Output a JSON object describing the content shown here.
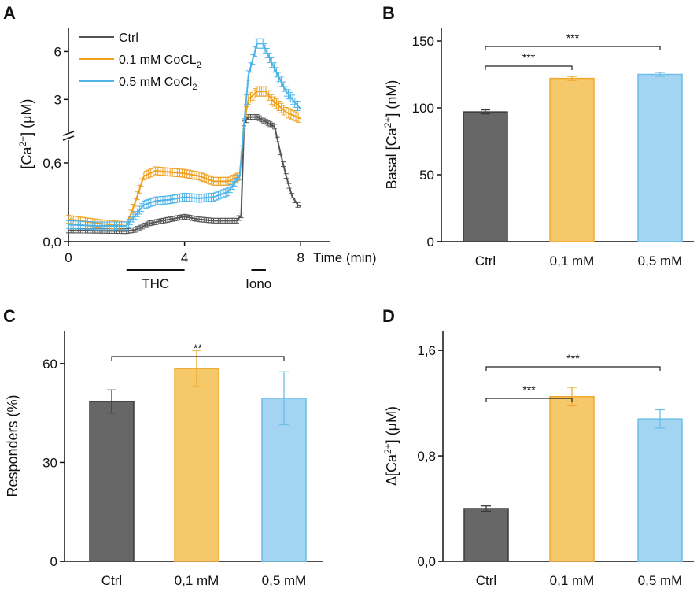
{
  "colors": {
    "ctrl_fill": "#676767",
    "ctrl_stroke": "#3a3a3a",
    "low_fill": "#f5c869",
    "low_stroke": "#f0a830",
    "high_fill": "#a3d5f3",
    "high_stroke": "#6cbde9",
    "ctrl_line": "#555555",
    "low_line": "#f0a020",
    "high_line": "#4fb3e8"
  },
  "chart_data": [
    {
      "panel": "A",
      "type": "line",
      "xlabel": "Time (min)",
      "ylabel": {
        "prefix": "[Ca",
        "sup": "2+",
        "suffix": "] (μM)"
      },
      "xticks": [
        "0",
        "4",
        "8"
      ],
      "xtick_values": [
        0,
        4,
        8
      ],
      "yticks": [
        "0,0",
        "0,6",
        "3",
        "6"
      ],
      "ytick_values": [
        0,
        0.6,
        3,
        6
      ],
      "y_axis_break": 0.7,
      "xlim": [
        0,
        9
      ],
      "annotations": [
        {
          "label": "THC",
          "start": 2,
          "end": 4
        },
        {
          "label": "Iono",
          "start": 6.3,
          "end": 6.8
        }
      ],
      "series": [
        {
          "name": "Ctrl",
          "sub": "",
          "color_key": "ctrl_line",
          "x": [
            0,
            1,
            2,
            2.3,
            2.8,
            3.5,
            4,
            4.5,
            5,
            5.8,
            5.95,
            6.05,
            6.2,
            6.5,
            6.8,
            7.1,
            7.3,
            7.5,
            7.7,
            7.9,
            8.0
          ],
          "y": [
            0.085,
            0.083,
            0.08,
            0.09,
            0.14,
            0.17,
            0.19,
            0.17,
            0.16,
            0.16,
            0.2,
            1.5,
            1.9,
            1.9,
            1.6,
            1.3,
            0.68,
            0.5,
            0.35,
            0.28,
            0.27
          ]
        },
        {
          "name": "0.1 mM CoCL",
          "sub": "2",
          "color_key": "low_line",
          "x": [
            0,
            1,
            2,
            2.3,
            2.6,
            3,
            3.5,
            4,
            4.5,
            5,
            5.5,
            5.9,
            6.05,
            6.2,
            6.5,
            6.8,
            7,
            7.5,
            8
          ],
          "y": [
            0.17,
            0.14,
            0.12,
            0.3,
            0.5,
            0.54,
            0.53,
            0.52,
            0.5,
            0.46,
            0.46,
            0.5,
            1.5,
            3.0,
            3.5,
            3.5,
            3.0,
            2.2,
            1.8
          ]
        },
        {
          "name": "0.5 mM CoCl",
          "sub": "2",
          "color_key": "high_line",
          "x": [
            0,
            1,
            2,
            2.3,
            2.6,
            3,
            3.5,
            4,
            4.5,
            5,
            5.5,
            5.9,
            6.05,
            6.2,
            6.5,
            6.7,
            7,
            7.5,
            7.8,
            8
          ],
          "y": [
            0.13,
            0.12,
            0.12,
            0.2,
            0.28,
            0.31,
            0.32,
            0.34,
            0.33,
            0.34,
            0.38,
            0.5,
            1.5,
            4.5,
            6.5,
            6.5,
            5.3,
            3.5,
            2.8,
            2.4
          ]
        }
      ]
    },
    {
      "panel": "B",
      "type": "bar",
      "categories": [
        "Ctrl",
        "0,1 mM",
        "0,5 mM"
      ],
      "values": [
        97,
        122,
        125
      ],
      "errors": [
        1.5,
        1.5,
        1.5
      ],
      "ylabel": {
        "prefix": "Basal [Ca",
        "sup": "2+",
        "suffix": "] (nM)"
      },
      "yticks": [
        "0",
        "50",
        "100",
        "150"
      ],
      "ytick_values": [
        0,
        50,
        100,
        150
      ],
      "ylim": [
        0,
        160
      ],
      "significance": [
        {
          "from": 0,
          "to": 1,
          "label": "***"
        },
        {
          "from": 0,
          "to": 2,
          "label": "***"
        }
      ]
    },
    {
      "panel": "C",
      "type": "bar",
      "categories": [
        "Ctrl",
        "0,1 mM",
        "0,5 mM"
      ],
      "values": [
        48.5,
        58.5,
        49.5
      ],
      "errors": [
        3.5,
        5.5,
        8
      ],
      "ylabel": {
        "prefix": "Responders (%)",
        "sup": "",
        "suffix": ""
      },
      "yticks": [
        "0",
        "30",
        "60"
      ],
      "ytick_values": [
        0,
        30,
        60
      ],
      "ylim": [
        0,
        70
      ],
      "significance": [
        {
          "from": 0,
          "to": 2,
          "label": "**"
        }
      ]
    },
    {
      "panel": "D",
      "type": "bar",
      "categories": [
        "Ctrl",
        "0,1 mM",
        "0,5 mM"
      ],
      "values": [
        0.4,
        1.25,
        1.08
      ],
      "errors": [
        0.02,
        0.07,
        0.07
      ],
      "ylabel": {
        "prefix": "Δ[Ca",
        "sup": "2+",
        "suffix": "] (μM)"
      },
      "yticks": [
        "0,0",
        "0,8",
        "1,6"
      ],
      "ytick_values": [
        0,
        0.8,
        1.6
      ],
      "ylim": [
        0,
        1.75
      ],
      "significance": [
        {
          "from": 0,
          "to": 1,
          "label": "***"
        },
        {
          "from": 0,
          "to": 2,
          "label": "***"
        }
      ]
    }
  ]
}
